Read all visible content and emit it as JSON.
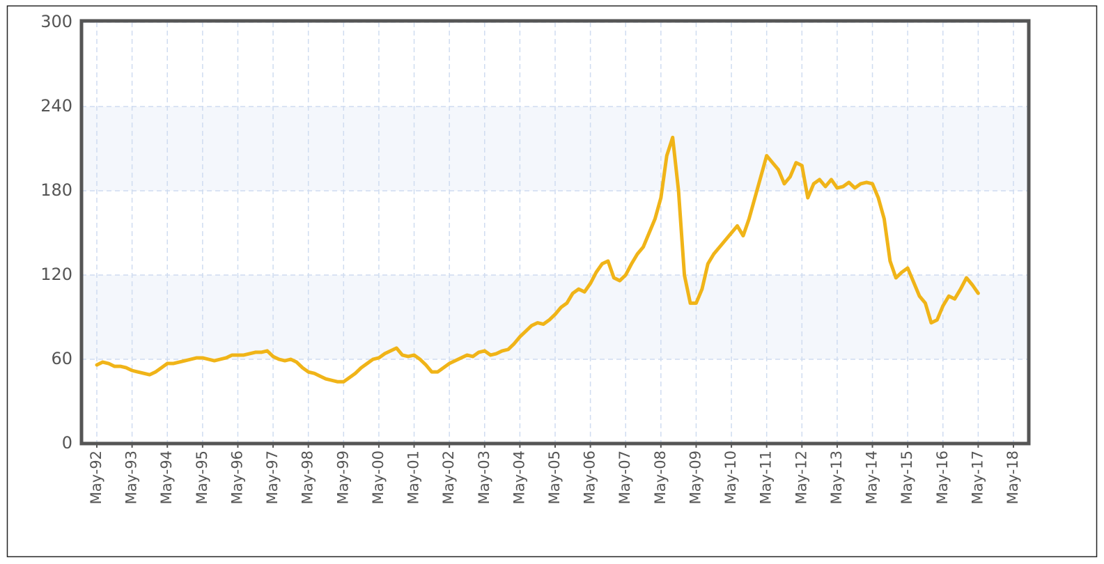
{
  "chart_data": {
    "type": "line",
    "categories": [
      "May-92",
      null,
      null,
      null,
      null,
      null,
      "May-93",
      null,
      null,
      null,
      null,
      null,
      "May-94",
      null,
      null,
      null,
      null,
      null,
      "May-95",
      null,
      null,
      null,
      null,
      null,
      "May-96",
      null,
      null,
      null,
      null,
      null,
      "May-97",
      null,
      null,
      null,
      null,
      null,
      "May-98",
      null,
      null,
      null,
      null,
      null,
      "May-99",
      null,
      null,
      null,
      null,
      null,
      "May-00",
      null,
      null,
      null,
      null,
      null,
      "May-01",
      null,
      null,
      null,
      null,
      null,
      "May-02",
      null,
      null,
      null,
      null,
      null,
      "May-03",
      null,
      null,
      null,
      null,
      null,
      "May-04",
      null,
      null,
      null,
      null,
      null,
      "May-05",
      null,
      null,
      null,
      null,
      null,
      "May-06",
      null,
      null,
      null,
      null,
      null,
      "May-07",
      null,
      null,
      null,
      null,
      null,
      "May-08",
      null,
      null,
      null,
      null,
      null,
      "May-09",
      null,
      null,
      null,
      null,
      null,
      "May-10",
      null,
      null,
      null,
      null,
      null,
      "May-11",
      null,
      null,
      null,
      null,
      null,
      "May-12",
      null,
      null,
      null,
      null,
      null,
      "May-13",
      null,
      null,
      null,
      null,
      null,
      "May-14",
      null,
      null,
      null,
      null,
      null,
      "May-15",
      null,
      null,
      null,
      null,
      null,
      "May-16",
      null,
      null,
      null,
      null,
      null,
      "May-17",
      null,
      null,
      null,
      null,
      null,
      "May-18"
    ],
    "values": [
      56,
      58,
      57,
      55,
      55,
      54,
      52,
      51,
      50,
      49,
      51,
      54,
      57,
      57,
      58,
      59,
      60,
      61,
      61,
      60,
      59,
      60,
      61,
      63,
      63,
      63,
      64,
      65,
      65,
      66,
      62,
      60,
      59,
      60,
      58,
      54,
      51,
      50,
      48,
      46,
      45,
      44,
      44,
      47,
      50,
      54,
      57,
      60,
      61,
      64,
      66,
      68,
      63,
      62,
      63,
      60,
      56,
      51,
      51,
      54,
      57,
      59,
      61,
      63,
      62,
      65,
      66,
      63,
      64,
      66,
      67,
      71,
      76,
      80,
      84,
      86,
      85,
      88,
      92,
      97,
      100,
      107,
      110,
      108,
      114,
      122,
      128,
      130,
      118,
      116,
      120,
      128,
      135,
      140,
      150,
      160,
      175,
      205,
      218,
      180,
      120,
      100,
      100,
      110,
      128,
      135,
      140,
      145,
      150,
      155,
      148,
      160,
      175,
      190,
      205,
      200,
      195,
      185,
      190,
      200,
      198,
      175,
      185,
      188,
      183,
      188,
      182,
      183,
      186,
      182,
      185,
      186,
      185,
      175,
      160,
      130,
      118,
      122,
      125,
      115,
      105,
      100,
      86,
      88,
      98,
      105,
      103,
      110,
      118,
      113,
      107,
      null,
      null,
      null,
      null,
      null,
      null
    ],
    "color": "#f0b418",
    "ylim": [
      0,
      300
    ],
    "yticks": [
      0,
      60,
      120,
      180,
      240,
      300
    ],
    "grid": true
  }
}
